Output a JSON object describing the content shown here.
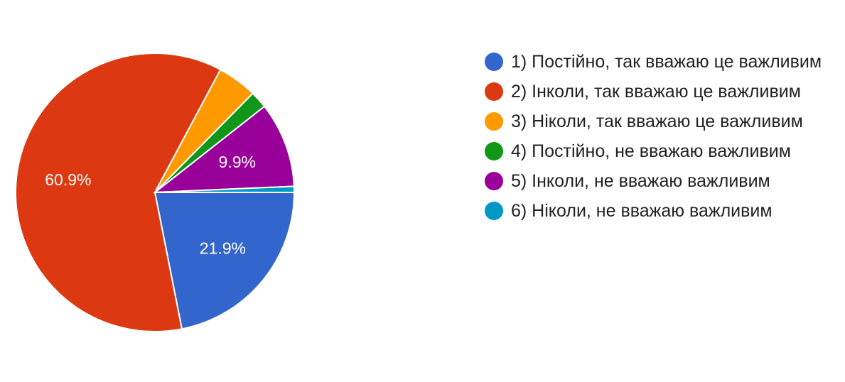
{
  "chart_data": {
    "type": "pie",
    "slices": [
      {
        "label": "1) Постійно, так вважаю це важливим",
        "value": 21.9,
        "color": "#3366cc",
        "data_label": "21.9%"
      },
      {
        "label": "2) Інколи, так вважаю це важливим",
        "value": 60.9,
        "color": "#dc3912",
        "data_label": "60.9%"
      },
      {
        "label": "3) Ніколи, так вважаю це важливим",
        "value": 4.6,
        "color": "#ff9900",
        "data_label": ""
      },
      {
        "label": "4) Постійно, не вважаю важливим",
        "value": 2.0,
        "color": "#109618",
        "data_label": ""
      },
      {
        "label": "5) Інколи, не вважаю важливим",
        "value": 9.9,
        "color": "#990099",
        "data_label": "9.9%"
      },
      {
        "label": "6) Ніколи, не вважаю важливим",
        "value": 0.7,
        "color": "#0099c6",
        "data_label": ""
      }
    ],
    "legend_position": "right"
  }
}
